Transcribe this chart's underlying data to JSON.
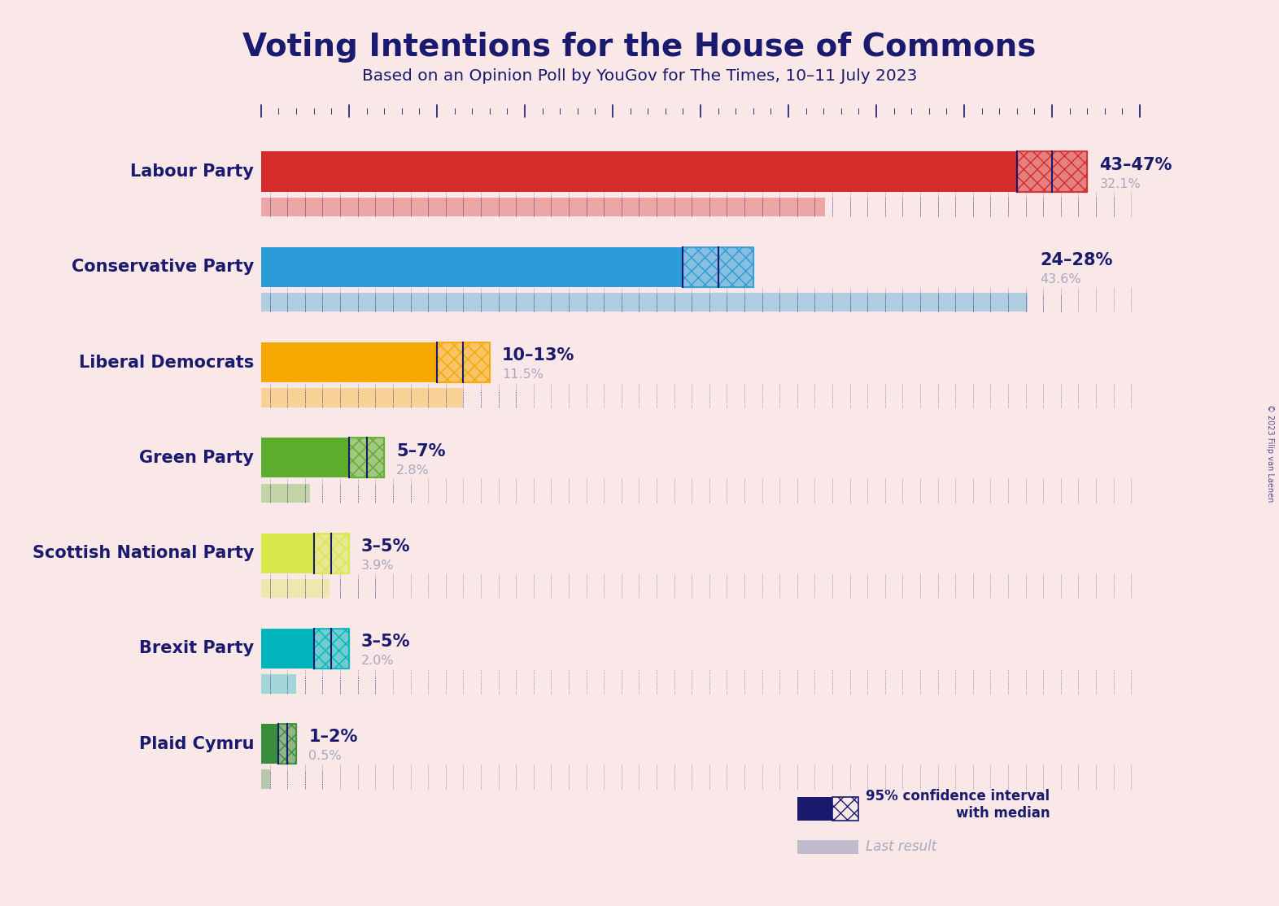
{
  "title": "Voting Intentions for the House of Commons",
  "subtitle": "Based on an Opinion Poll by YouGov for The Times, 10–11 July 2023",
  "background_color": "#FAE8E8",
  "title_color": "#1a1a6e",
  "subtitle_color": "#1a1a6e",
  "parties": [
    "Labour Party",
    "Conservative Party",
    "Liberal Democrats",
    "Green Party",
    "Scottish National Party",
    "Brexit Party",
    "Plaid Cymru"
  ],
  "colors": [
    "#D42B2B",
    "#2B9CD8",
    "#F5A800",
    "#5BAD2B",
    "#D8E84A",
    "#00B5BC",
    "#3A8C3A"
  ],
  "ci_low": [
    43,
    24,
    10,
    5,
    3,
    3,
    1
  ],
  "ci_high": [
    47,
    28,
    13,
    7,
    5,
    5,
    2
  ],
  "median": [
    45,
    26,
    11.5,
    6,
    4,
    4,
    1.5
  ],
  "last_result": [
    32.1,
    43.6,
    11.5,
    2.8,
    3.9,
    2.0,
    0.5
  ],
  "label_range": [
    "43–47%",
    "24–28%",
    "10–13%",
    "5–7%",
    "3–5%",
    "3–5%",
    "1–2%"
  ],
  "label_last": [
    "32.1%",
    "43.6%",
    "11.5%",
    "2.8%",
    "3.9%",
    "2.0%",
    "0.5%"
  ],
  "xlim_data": 50,
  "last_result_color": "#a8a8be",
  "copyright": "© 2023 Filip van Laenen",
  "legend_ci_text": "95% confidence interval\nwith median",
  "legend_last_text": "Last result"
}
